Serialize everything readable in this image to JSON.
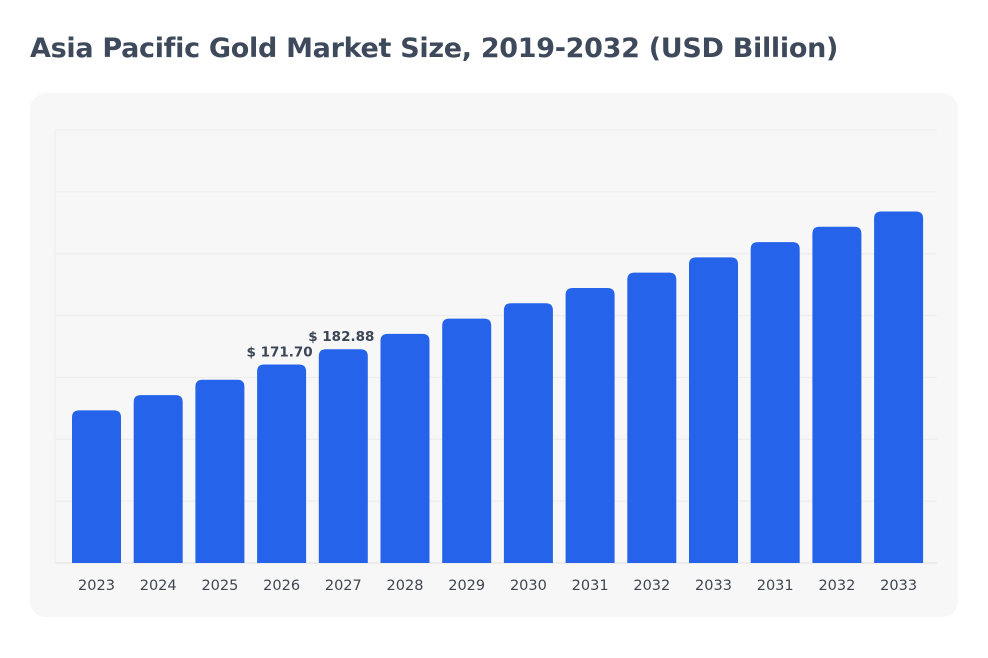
{
  "title": "Asia Pacific Gold Market Size, 2019-2032 (USD Billion)",
  "chart_data": {
    "type": "bar",
    "title": "Asia Pacific Gold Market Size, 2019-2032 (USD Billion)",
    "xlabel": "",
    "ylabel": "",
    "categories": [
      "2023",
      "2024",
      "2025",
      "2026",
      "2027",
      "2028",
      "2029",
      "2030",
      "2031",
      "2032",
      "2033",
      "2031",
      "2032",
      "2033"
    ],
    "values": [
      138.16,
      149.34,
      160.52,
      171.7,
      182.88,
      194.06,
      205.24,
      216.42,
      227.6,
      238.78,
      249.96,
      261.14,
      272.32,
      283.5
    ],
    "data_labels": [
      {
        "index": 3,
        "text": "$ 171.70"
      },
      {
        "index": 4,
        "text": "$ 182.88"
      }
    ],
    "ylim": [
      26.7,
      343
    ],
    "grid": true,
    "gridlines": 7,
    "legend": "none",
    "bar_color": "#2563eb",
    "background_color": "#f7f7f7"
  }
}
